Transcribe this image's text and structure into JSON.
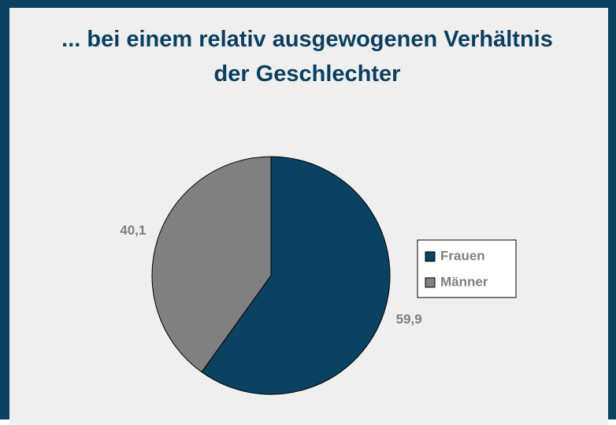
{
  "chart_data": {
    "type": "pie",
    "title": "... bei einem relativ ausgewogenen Verhältnis der Geschlechter",
    "categories": [
      "Frauen",
      "Männer"
    ],
    "values": [
      59.9,
      40.1
    ],
    "value_labels": [
      "59,9",
      "40,1"
    ],
    "colors": [
      "#0b4262",
      "#808080"
    ],
    "legend": "right"
  }
}
